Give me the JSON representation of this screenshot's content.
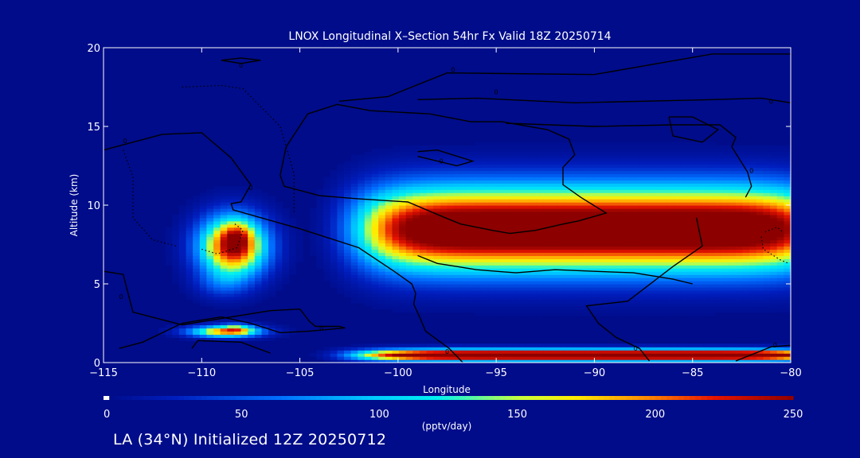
{
  "chart_data": {
    "type": "heatmap",
    "title": "LNOX Longitudinal X–Section 54hr  Fx Valid 18Z 20250714",
    "xlabel": "Longitude",
    "ylabel": "Altitude (km)",
    "xlim": [
      -115,
      -80
    ],
    "ylim": [
      0,
      20
    ],
    "x_ticks": [
      -115,
      -110,
      -105,
      -100,
      -95,
      -90,
      -85,
      -80
    ],
    "x_tick_labels": [
      "−115",
      "−110",
      "−105",
      "−100",
      "−95",
      "−90",
      "−85",
      "−80"
    ],
    "y_ticks": [
      0,
      5,
      10,
      15,
      20
    ],
    "y_tick_labels": [
      "0",
      "5",
      "10",
      "15",
      "20"
    ],
    "colorbar": {
      "min": 0,
      "max": 250,
      "ticks": [
        0,
        50,
        100,
        150,
        200,
        250
      ],
      "tick_labels": [
        "0",
        "50",
        "100",
        "150",
        "200",
        "250"
      ],
      "label": "(pptv/day)"
    },
    "blobs": [
      {
        "x": -108.4,
        "y": 7.4,
        "sx": 1.7,
        "sy": 1.9,
        "v": 240
      },
      {
        "x": -108.2,
        "y": 8.0,
        "sx": 0.7,
        "sy": 0.9,
        "v": 55
      },
      {
        "x": -109.0,
        "y": 5.0,
        "sx": 1.3,
        "sy": 0.9,
        "v": 30
      },
      {
        "x": -108.8,
        "y": 2.0,
        "sx": 1.8,
        "sy": 0.35,
        "v": 190
      },
      {
        "x": -108.2,
        "y": 2.2,
        "sx": 0.8,
        "sy": 0.3,
        "v": 70
      },
      {
        "x": -90.0,
        "y": 8.5,
        "sx": 12.0,
        "sy": 2.6,
        "v": 300
      },
      {
        "x": -90.0,
        "y": 0.5,
        "sx": 12.0,
        "sy": 0.35,
        "v": 320
      }
    ],
    "contour_labels": [
      {
        "x": -108.0,
        "y": 18.9,
        "text": "0"
      },
      {
        "x": -97.2,
        "y": 18.6,
        "text": "0"
      },
      {
        "x": -95.0,
        "y": 17.2,
        "text": "0"
      },
      {
        "x": -81.0,
        "y": 16.6,
        "text": "0"
      },
      {
        "x": -113.9,
        "y": 14.1,
        "text": "0"
      },
      {
        "x": -97.8,
        "y": 12.8,
        "text": "0"
      },
      {
        "x": -82.0,
        "y": 12.2,
        "text": "0"
      },
      {
        "x": -107.5,
        "y": 11.1,
        "text": "0"
      },
      {
        "x": -114.1,
        "y": 4.2,
        "text": "0"
      },
      {
        "x": -103.9,
        "y": 2.2,
        "text": "0"
      },
      {
        "x": -97.5,
        "y": 0.7,
        "text": "0"
      },
      {
        "x": -87.9,
        "y": 0.9,
        "text": "0"
      },
      {
        "x": -80.8,
        "y": 1.1,
        "text": "0"
      }
    ],
    "contours": [
      {
        "style": "solid",
        "points": [
          [
            -115,
            5.8
          ],
          [
            -114,
            5.6
          ],
          [
            -113.5,
            3.2
          ],
          [
            -111,
            2.4
          ],
          [
            -108.5,
            2.9
          ],
          [
            -106.5,
            3.3
          ],
          [
            -105,
            3.4
          ],
          [
            -104.5,
            2.6
          ],
          [
            -104.2,
            2.3
          ],
          [
            -103,
            2.3
          ],
          [
            -102.7,
            2.2
          ],
          [
            -104.5,
            2.0
          ],
          [
            -106,
            1.9
          ],
          [
            -107.5,
            2.5
          ],
          [
            -109,
            2.9
          ],
          [
            -111,
            2.5
          ],
          [
            -113,
            1.3
          ],
          [
            -114.2,
            0.9
          ]
        ]
      },
      {
        "style": "solid",
        "points": [
          [
            -109,
            19.2
          ],
          [
            -108,
            19.0
          ],
          [
            -107,
            19.2
          ],
          [
            -108,
            19.35
          ],
          [
            -109,
            19.2
          ]
        ]
      },
      {
        "style": "solid",
        "points": [
          [
            -110.5,
            0.9
          ],
          [
            -110.2,
            1.4
          ],
          [
            -108,
            1.3
          ],
          [
            -106.5,
            0.6
          ]
        ]
      },
      {
        "style": "solid",
        "points": [
          [
            -99,
            6.8
          ],
          [
            -98,
            6.3
          ],
          [
            -97,
            6.1
          ],
          [
            -96,
            5.9
          ],
          [
            -94,
            5.7
          ],
          [
            -92,
            5.9
          ],
          [
            -90,
            5.8
          ],
          [
            -88,
            5.7
          ],
          [
            -86,
            5.3
          ],
          [
            -85,
            5.0
          ]
        ]
      },
      {
        "style": "solid",
        "points": [
          [
            -115,
            13.5
          ],
          [
            -112,
            14.5
          ],
          [
            -110,
            14.6
          ],
          [
            -108.5,
            13
          ],
          [
            -107.5,
            11.3
          ],
          [
            -108,
            10.2
          ],
          [
            -108.5,
            10.1
          ],
          [
            -108.4,
            9.7
          ],
          [
            -105,
            8.5
          ],
          [
            -102,
            7.3
          ],
          [
            -100.2,
            5.8
          ],
          [
            -99.3,
            5
          ],
          [
            -99.1,
            4.4
          ],
          [
            -99.2,
            3.7
          ],
          [
            -98.9,
            2.9
          ],
          [
            -98.6,
            2
          ],
          [
            -97.4,
            0.9
          ],
          [
            -97,
            0.4
          ],
          [
            -96.7,
            0
          ]
        ]
      },
      {
        "style": "solid",
        "points": [
          [
            -103,
            16.6
          ],
          [
            -100.5,
            16.9
          ],
          [
            -97.5,
            18.4
          ],
          [
            -90,
            18.3
          ],
          [
            -84,
            19.6
          ],
          [
            -80,
            19.6
          ]
        ]
      },
      {
        "style": "solid",
        "points": [
          [
            -99,
            16.7
          ],
          [
            -96,
            16.8
          ],
          [
            -91,
            16.5
          ],
          [
            -84,
            16.7
          ],
          [
            -81.5,
            16.8
          ],
          [
            -80,
            16.5
          ]
        ]
      },
      {
        "style": "solid",
        "points": [
          [
            -94.5,
            15.2
          ],
          [
            -90,
            15
          ],
          [
            -86,
            15.1
          ],
          [
            -83.6,
            15.1
          ],
          [
            -82.8,
            14.3
          ],
          [
            -83,
            13.7
          ],
          [
            -82.2,
            12.1
          ],
          [
            -82,
            11.2
          ],
          [
            -82.3,
            10.5
          ]
        ]
      },
      {
        "style": "solid",
        "points": [
          [
            -105.7,
            13.7
          ],
          [
            -106,
            11.9
          ],
          [
            -105.8,
            11.2
          ],
          [
            -104,
            10.6
          ],
          [
            -102,
            10.4
          ],
          [
            -99.5,
            10.2
          ],
          [
            -97.6,
            9.2
          ],
          [
            -96.8,
            8.8
          ],
          [
            -95.2,
            8.4
          ],
          [
            -94.3,
            8.2
          ],
          [
            -93,
            8.4
          ],
          [
            -91.6,
            8.8
          ],
          [
            -90.8,
            9.0
          ],
          [
            -89.4,
            9.5
          ],
          [
            -90.7,
            10.5
          ],
          [
            -91.6,
            11.3
          ],
          [
            -91.6,
            12.4
          ],
          [
            -91.0,
            13.2
          ],
          [
            -91.3,
            14.2
          ],
          [
            -92.4,
            14.8
          ],
          [
            -94.7,
            15.3
          ],
          [
            -96.3,
            15.3
          ],
          [
            -98.4,
            15.8
          ],
          [
            -101.4,
            16.0
          ],
          [
            -103.1,
            16.4
          ],
          [
            -104.6,
            15.8
          ],
          [
            -105.7,
            13.7
          ]
        ]
      },
      {
        "style": "solid",
        "points": [
          [
            -99,
            13.4
          ],
          [
            -98,
            13.5
          ],
          [
            -96.2,
            12.8
          ],
          [
            -97,
            12.5
          ],
          [
            -99,
            13.1
          ]
        ]
      },
      {
        "style": "solid",
        "points": [
          [
            -86.2,
            15.6
          ],
          [
            -85,
            15.6
          ],
          [
            -83.7,
            14.8
          ],
          [
            -84.5,
            14
          ],
          [
            -86,
            14.4
          ],
          [
            -86.2,
            15.6
          ]
        ]
      },
      {
        "style": "solid",
        "points": [
          [
            -84.8,
            9.2
          ],
          [
            -84.5,
            7.4
          ],
          [
            -86,
            6.1
          ],
          [
            -88.3,
            3.9
          ],
          [
            -90.4,
            3.6
          ],
          [
            -89.8,
            2.5
          ],
          [
            -88.9,
            1.6
          ],
          [
            -87.7,
            0.9
          ],
          [
            -87.2,
            0.1
          ]
        ]
      },
      {
        "style": "solid",
        "points": [
          [
            -82.8,
            0.1
          ],
          [
            -81,
            1.0
          ],
          [
            -80,
            1.1
          ]
        ]
      },
      {
        "style": "dotted",
        "points": [
          [
            -110,
            7.2
          ],
          [
            -109.2,
            6.9
          ],
          [
            -108.2,
            7.3
          ],
          [
            -107.9,
            8.4
          ],
          [
            -108.4,
            8.9
          ]
        ]
      },
      {
        "style": "dotted",
        "points": [
          [
            -111,
            17.5
          ],
          [
            -109,
            17.6
          ],
          [
            -107.9,
            17.4
          ],
          [
            -106,
            15
          ],
          [
            -105.3,
            12
          ],
          [
            -105.3,
            9.5
          ]
        ]
      },
      {
        "style": "dotted",
        "points": [
          [
            -114,
            13.5
          ],
          [
            -113.5,
            11.8
          ],
          [
            -113.5,
            9.2
          ],
          [
            -112.5,
            7.8
          ],
          [
            -111.3,
            7.4
          ]
        ]
      },
      {
        "style": "dotted",
        "points": [
          [
            -81.3,
            8.3
          ],
          [
            -80.7,
            8.6
          ],
          [
            -80.4,
            8.3
          ]
        ]
      },
      {
        "style": "dotted",
        "points": [
          [
            -81.5,
            8.0
          ],
          [
            -81.4,
            7.2
          ],
          [
            -80.5,
            6.5
          ],
          [
            -80.1,
            6.3
          ]
        ]
      }
    ]
  },
  "footer_text": "LA (34°N) Initialized 12Z 20250712"
}
